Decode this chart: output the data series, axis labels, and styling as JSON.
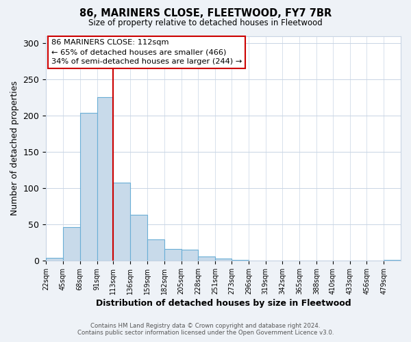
{
  "title": "86, MARINERS CLOSE, FLEETWOOD, FY7 7BR",
  "subtitle": "Size of property relative to detached houses in Fleetwood",
  "xlabel": "Distribution of detached houses by size in Fleetwood",
  "ylabel": "Number of detached properties",
  "bar_color": "#c8daea",
  "bar_edge_color": "#6aaed6",
  "bin_labels": [
    "22sqm",
    "45sqm",
    "68sqm",
    "91sqm",
    "113sqm",
    "136sqm",
    "159sqm",
    "182sqm",
    "205sqm",
    "228sqm",
    "251sqm",
    "273sqm",
    "296sqm",
    "319sqm",
    "342sqm",
    "365sqm",
    "388sqm",
    "410sqm",
    "433sqm",
    "456sqm",
    "479sqm"
  ],
  "bar_heights": [
    4,
    46,
    204,
    226,
    108,
    63,
    29,
    16,
    15,
    6,
    3,
    1,
    0,
    0,
    0,
    0,
    0,
    0,
    0,
    0,
    1
  ],
  "bin_edges": [
    22,
    45,
    68,
    91,
    113,
    136,
    159,
    182,
    205,
    228,
    251,
    273,
    296,
    319,
    342,
    365,
    388,
    410,
    433,
    456,
    479,
    502
  ],
  "vline_x": 113,
  "vline_color": "#cc0000",
  "ylim": [
    0,
    310
  ],
  "yticks": [
    0,
    50,
    100,
    150,
    200,
    250,
    300
  ],
  "annotation_line1": "86 MARINERS CLOSE: 112sqm",
  "annotation_line2": "← 65% of detached houses are smaller (466)",
  "annotation_line3": "34% of semi-detached houses are larger (244) →",
  "footer_line1": "Contains HM Land Registry data © Crown copyright and database right 2024.",
  "footer_line2": "Contains public sector information licensed under the Open Government Licence v3.0.",
  "background_color": "#eef2f7",
  "plot_background_color": "#ffffff",
  "grid_color": "#c8d4e4"
}
